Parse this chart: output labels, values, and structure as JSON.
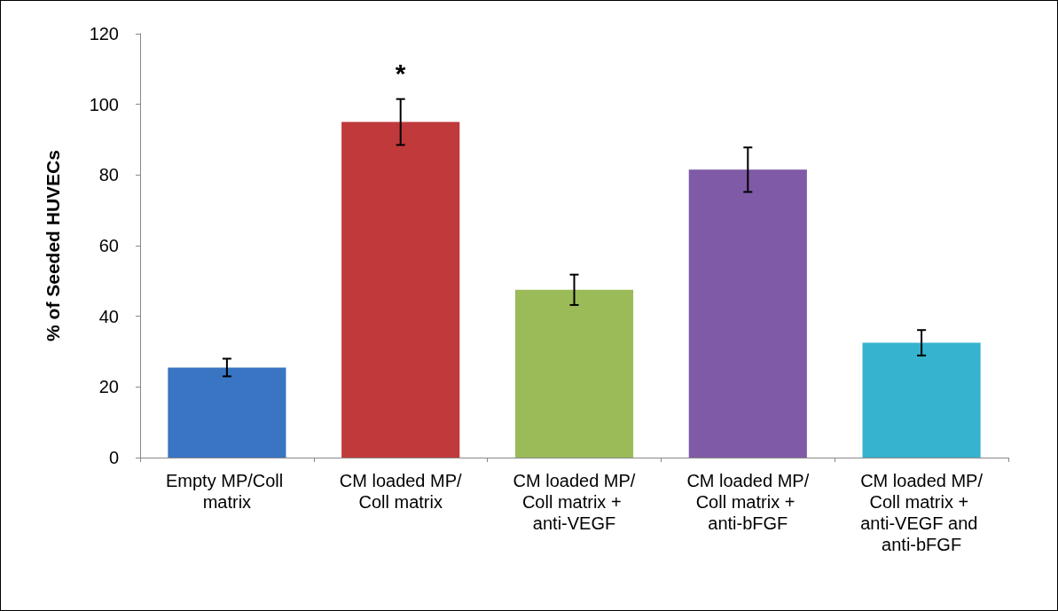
{
  "chart_data": {
    "type": "bar",
    "ylabel": "% of Seeded HUVECs",
    "categories": [
      "Empty MP/Coll matrix",
      "CM loaded MP/Coll matrix",
      "CM loaded MP/Coll matrix + anti-VEGF",
      "CM loaded MP/Coll matrix + anti-bFGF",
      "CM loaded MP/Coll matrix + anti-VEGF and anti-bFGF"
    ],
    "values": [
      25.5,
      95,
      47.5,
      81.5,
      32.5
    ],
    "colors": [
      "#3a75c4",
      "#c0393b",
      "#9bbb59",
      "#7f5aa6",
      "#35b3cf"
    ],
    "errors": [
      2.5,
      6.5,
      4.3,
      6.3,
      3.6
    ],
    "annotations": [
      "*"
    ],
    "ylim": [
      0,
      120
    ],
    "yticks": [
      0,
      20,
      40,
      60,
      80,
      100,
      120
    ],
    "grid": false
  }
}
